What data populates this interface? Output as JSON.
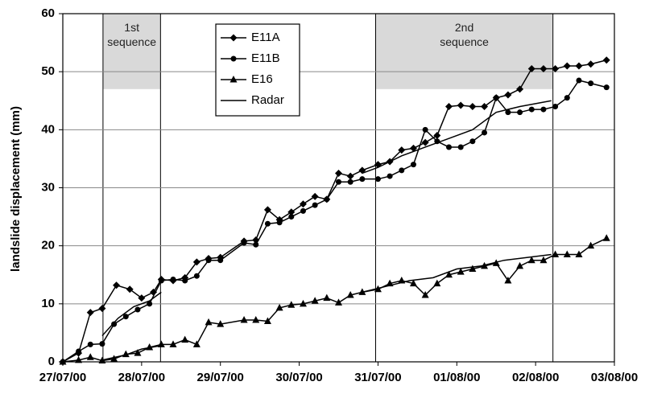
{
  "chart_data": {
    "type": "line",
    "y_label": "landslide displacement (mm)",
    "ylim": [
      0,
      60
    ],
    "yticks": [
      0,
      10,
      20,
      30,
      40,
      50,
      60
    ],
    "xlim": [
      0,
      7
    ],
    "xticks": [
      {
        "value": 0,
        "label": "27/07/00"
      },
      {
        "value": 1,
        "label": "28/07/00"
      },
      {
        "value": 2,
        "label": "29/07/00"
      },
      {
        "value": 3,
        "label": "30/07/00"
      },
      {
        "value": 4,
        "label": "31/07/00"
      },
      {
        "value": 5,
        "label": "01/08/00"
      },
      {
        "value": 6,
        "label": "02/08/00"
      },
      {
        "value": 7,
        "label": "03/08/00"
      }
    ],
    "grid": true,
    "legend": "upper center",
    "sequences": [
      {
        "label": [
          "1st",
          "sequence"
        ],
        "x": [
          0.51,
          1.24
        ],
        "y": [
          47,
          60
        ]
      },
      {
        "label": [
          "2nd",
          "sequence"
        ],
        "x": [
          3.97,
          6.22
        ],
        "y": [
          47,
          60
        ]
      }
    ],
    "series": [
      {
        "name": "E11A",
        "color": "#000000",
        "marker": "diamond",
        "x": [
          0,
          0.2,
          0.35,
          0.5,
          0.68,
          0.85,
          1.0,
          1.15,
          1.25,
          1.4,
          1.55,
          1.7,
          1.85,
          2.0,
          2.3,
          2.45,
          2.6,
          2.75,
          2.9,
          3.05,
          3.2,
          3.35,
          3.5,
          3.65,
          3.8,
          4.0,
          4.15,
          4.3,
          4.45,
          4.6,
          4.75,
          4.9,
          5.05,
          5.2,
          5.35,
          5.5,
          5.65,
          5.8,
          5.95,
          6.1,
          6.25,
          6.4,
          6.55,
          6.7,
          6.9
        ],
        "values": [
          0,
          1.5,
          8.5,
          9.2,
          13.2,
          12.5,
          11,
          12,
          14.2,
          14,
          14.5,
          17.2,
          17.8,
          18,
          20.8,
          21,
          26.2,
          24.5,
          25.8,
          27.2,
          28.5,
          28,
          32.5,
          32,
          33,
          34,
          34.5,
          36.5,
          36.8,
          37.8,
          39,
          44,
          44.2,
          44,
          44,
          45.5,
          46,
          47,
          50.5,
          50.5,
          50.5,
          51,
          51,
          51.3,
          52
        ]
      },
      {
        "name": "E11B",
        "color": "#000000",
        "marker": "circle",
        "x": [
          0,
          0.2,
          0.35,
          0.5,
          0.65,
          0.8,
          0.95,
          1.1,
          1.25,
          1.4,
          1.55,
          1.7,
          1.85,
          2.0,
          2.3,
          2.45,
          2.6,
          2.75,
          2.9,
          3.05,
          3.2,
          3.35,
          3.5,
          3.65,
          3.8,
          4.0,
          4.15,
          4.3,
          4.45,
          4.6,
          4.75,
          4.9,
          5.05,
          5.2,
          5.35,
          5.5,
          5.65,
          5.8,
          5.95,
          6.1,
          6.25,
          6.4,
          6.55,
          6.7,
          6.9
        ],
        "values": [
          0,
          1.8,
          3,
          3.1,
          6.5,
          7.8,
          9,
          10,
          14,
          14.2,
          14,
          14.8,
          17.5,
          17.5,
          20.5,
          20.2,
          23.8,
          24,
          25,
          26,
          27,
          28,
          31,
          31,
          31.5,
          31.5,
          32,
          33,
          34,
          40,
          38,
          37,
          37,
          38,
          39.5,
          45.5,
          43,
          43,
          43.5,
          43.5,
          44,
          45.5,
          48.5,
          48,
          47.3
        ]
      },
      {
        "name": "E16",
        "color": "#000000",
        "marker": "triangle",
        "x": [
          0,
          0.2,
          0.35,
          0.5,
          0.65,
          0.8,
          0.95,
          1.1,
          1.25,
          1.4,
          1.55,
          1.7,
          1.85,
          2.0,
          2.3,
          2.45,
          2.6,
          2.75,
          2.9,
          3.05,
          3.2,
          3.35,
          3.5,
          3.65,
          3.8,
          4.0,
          4.15,
          4.3,
          4.45,
          4.6,
          4.75,
          4.9,
          5.05,
          5.2,
          5.35,
          5.5,
          5.65,
          5.8,
          5.95,
          6.1,
          6.25,
          6.4,
          6.55,
          6.7,
          6.9
        ],
        "values": [
          0,
          0.3,
          0.8,
          0.2,
          0.5,
          1.3,
          1.5,
          2.5,
          3,
          3,
          3.8,
          3,
          6.8,
          6.5,
          7.2,
          7.2,
          7,
          9.3,
          9.8,
          10,
          10.5,
          11,
          10.2,
          11.5,
          12,
          12.5,
          13.5,
          14,
          13.5,
          11.5,
          13.5,
          15,
          15.5,
          16,
          16.5,
          17,
          14,
          16.5,
          17.5,
          17.5,
          18.5,
          18.5,
          18.5,
          20,
          21.3
        ]
      },
      {
        "name": "Radar",
        "color": "#000000",
        "marker": "none",
        "x": [
          0.5,
          0.7,
          0.9,
          1.1,
          1.25,
          null,
          0.5,
          0.8,
          1.0,
          1.25,
          null,
          3.8,
          4.0,
          4.3,
          4.6,
          4.9,
          5.2,
          5.5,
          5.8,
          6.0,
          6.2,
          null,
          3.8,
          4.1,
          4.4,
          4.7,
          5.0,
          5.3,
          5.6,
          5.9,
          6.2
        ],
        "values": [
          4.5,
          7.5,
          9.5,
          10.5,
          12,
          null,
          0.3,
          1.2,
          2.2,
          2.8,
          null,
          32.5,
          33.5,
          35.5,
          37,
          38.5,
          40,
          43,
          44,
          44.5,
          45,
          null,
          12,
          13,
          14,
          14.5,
          16,
          16.5,
          17.5,
          18,
          18.5
        ]
      }
    ]
  }
}
